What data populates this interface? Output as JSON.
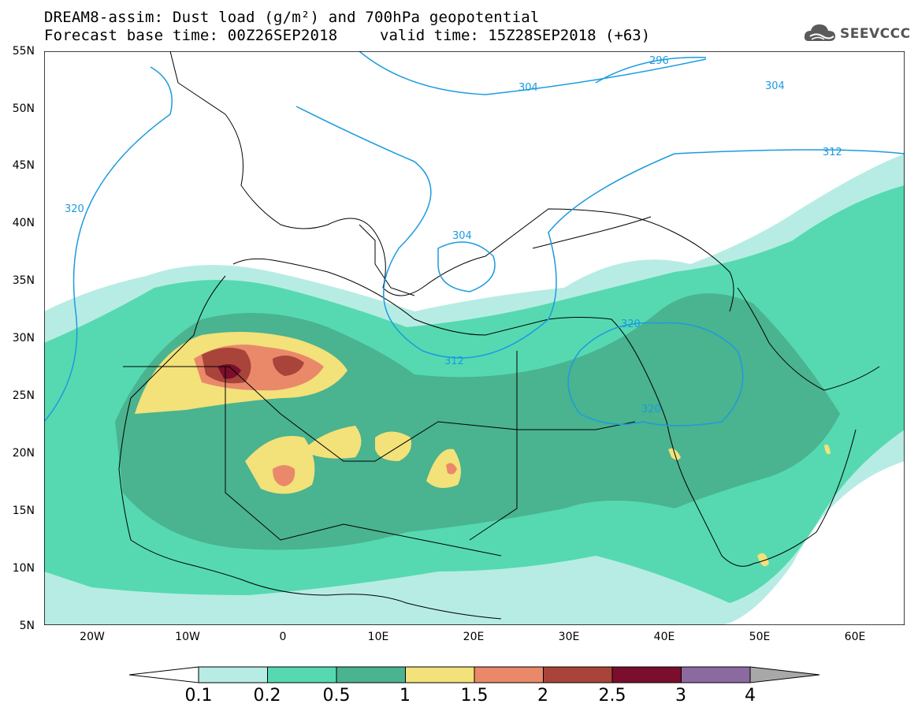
{
  "title": {
    "line1": "DREAM8-assim: Dust load (g/m²) and 700hPa geopotential",
    "line2": "Forecast base time: 00Z26SEP2018",
    "valid": "valid time: 15Z28SEP2018 (+63)"
  },
  "logo": {
    "text": "SEEVCCC",
    "icon": "cloud-icon"
  },
  "axes": {
    "lat_labels": [
      "55N",
      "50N",
      "45N",
      "40N",
      "35N",
      "30N",
      "25N",
      "20N",
      "15N",
      "10N",
      "5N"
    ],
    "lon_labels": [
      "20W",
      "10W",
      "0",
      "10E",
      "20E",
      "30E",
      "40E",
      "50E",
      "60E"
    ],
    "lat_range": [
      5,
      55
    ],
    "lon_range": [
      -25,
      65
    ]
  },
  "contours": {
    "variable": "700hPa geopotential",
    "labels": [
      "296",
      "304",
      "304",
      "312",
      "320",
      "304",
      "312",
      "320",
      "320"
    ],
    "color": "#1b9be0"
  },
  "legend": {
    "labels": [
      "0.1",
      "0.2",
      "0.5",
      "1",
      "1.5",
      "2",
      "2.5",
      "3",
      "4"
    ],
    "colors": [
      "#ffffff",
      "#b7ece4",
      "#56d9b0",
      "#4ab38f",
      "#f3e17a",
      "#e9896a",
      "#a8443a",
      "#7a0e2c",
      "#8b6aa0",
      "#a8a8a8"
    ]
  }
}
